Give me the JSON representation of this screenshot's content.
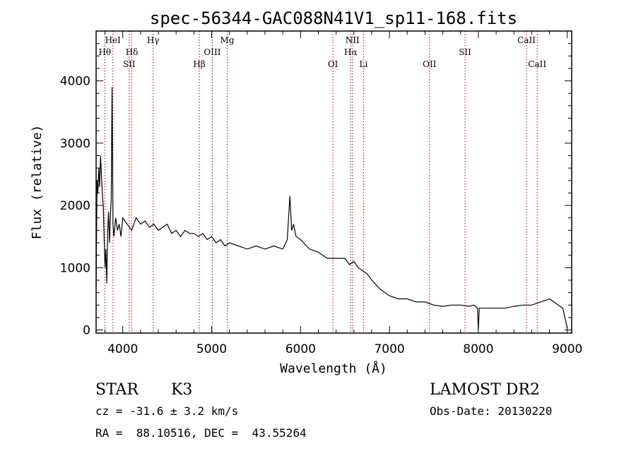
{
  "chart_data": {
    "type": "line",
    "title": "spec-56344-GAC088N41V1_sp11-168.fits",
    "xlabel": "Wavelength (Å)",
    "ylabel": "Flux (relative)",
    "xlim": [
      3700,
      9050
    ],
    "ylim": [
      -50,
      4800
    ],
    "x_ticks": [
      4000,
      5000,
      6000,
      7000,
      8000,
      9000
    ],
    "y_ticks": [
      0,
      1000,
      2000,
      3000,
      4000
    ],
    "grid": false,
    "spectrum": {
      "x": [
        3700,
        3710,
        3720,
        3730,
        3740,
        3750,
        3760,
        3770,
        3780,
        3790,
        3800,
        3810,
        3820,
        3830,
        3840,
        3850,
        3860,
        3870,
        3880,
        3890,
        3900,
        3920,
        3940,
        3960,
        3980,
        4000,
        4050,
        4100,
        4150,
        4200,
        4250,
        4300,
        4350,
        4400,
        4450,
        4500,
        4550,
        4600,
        4650,
        4700,
        4750,
        4800,
        4850,
        4900,
        4950,
        5000,
        5050,
        5100,
        5150,
        5200,
        5300,
        5400,
        5500,
        5600,
        5700,
        5800,
        5850,
        5880,
        5900,
        5920,
        5950,
        6000,
        6100,
        6200,
        6300,
        6400,
        6500,
        6550,
        6600,
        6650,
        6700,
        6750,
        6800,
        6900,
        7000,
        7100,
        7200,
        7300,
        7400,
        7500,
        7600,
        7700,
        7800,
        7900,
        7950,
        7990,
        8000,
        8010,
        8050,
        8100,
        8200,
        8300,
        8400,
        8500,
        8600,
        8700,
        8800,
        8850,
        8900,
        8950,
        9000
      ],
      "y": [
        700,
        2400,
        2200,
        2600,
        2300,
        2800,
        2500,
        2200,
        2000,
        1500,
        1000,
        1300,
        750,
        1600,
        1900,
        1400,
        1800,
        2100,
        3900,
        1700,
        1500,
        1800,
        1600,
        1700,
        1500,
        1800,
        1700,
        1600,
        1800,
        1700,
        1750,
        1650,
        1700,
        1600,
        1650,
        1700,
        1550,
        1600,
        1500,
        1600,
        1550,
        1550,
        1500,
        1550,
        1450,
        1500,
        1400,
        1450,
        1350,
        1400,
        1350,
        1300,
        1350,
        1300,
        1350,
        1300,
        1450,
        2150,
        1600,
        1700,
        1500,
        1450,
        1300,
        1250,
        1150,
        1150,
        1150,
        1050,
        1100,
        1000,
        950,
        900,
        800,
        650,
        550,
        500,
        500,
        450,
        450,
        400,
        380,
        400,
        400,
        380,
        400,
        350,
        0,
        350,
        350,
        350,
        350,
        350,
        380,
        400,
        400,
        450,
        500,
        450,
        400,
        350,
        30
      ]
    },
    "lines": [
      {
        "label": "Hθ",
        "x": 3798,
        "row": 2
      },
      {
        "label": "HeI",
        "x": 3889,
        "row": 1
      },
      {
        "label": "SII",
        "x": 4072,
        "row": 3
      },
      {
        "label": "Hδ",
        "x": 4102,
        "row": 2
      },
      {
        "label": "Hγ",
        "x": 4341,
        "row": 1
      },
      {
        "label": "Hβ",
        "x": 4861,
        "row": 3
      },
      {
        "label": "OIII",
        "x": 5007,
        "row": 2
      },
      {
        "label": "Mg",
        "x": 5175,
        "row": 1
      },
      {
        "label": "OI",
        "x": 6364,
        "row": 3
      },
      {
        "label": "Hα",
        "x": 6563,
        "row": 2
      },
      {
        "label": "NII",
        "x": 6584,
        "row": 1
      },
      {
        "label": "Li",
        "x": 6708,
        "row": 3
      },
      {
        "label": "OII",
        "x": 7450,
        "row": 3
      },
      {
        "label": "SII",
        "x": 7850,
        "row": 2
      },
      {
        "label": "CaII",
        "x": 8542,
        "row": 1
      },
      {
        "label": "CaII",
        "x": 8662,
        "row": 3
      }
    ]
  },
  "info": {
    "class_label": "STAR",
    "subclass": "K3",
    "survey": "LAMOST DR2",
    "cz": "cz = -31.6 ± 3.2 km/s",
    "obs_date": "Obs-Date: 20130220",
    "coords": "RA =  88.10516, DEC =  43.55264"
  }
}
